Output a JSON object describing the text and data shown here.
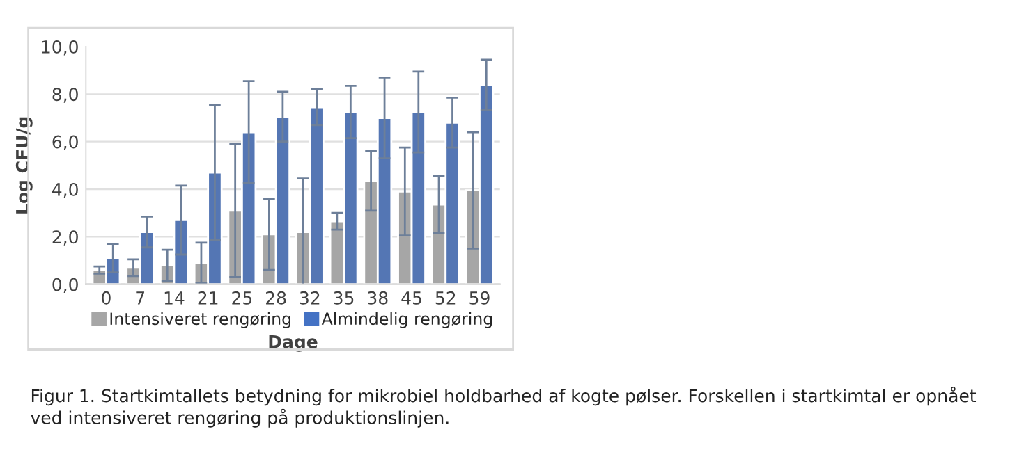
{
  "chart_data": {
    "type": "bar",
    "ylabel": "Log CFU/g",
    "xlabel": "Dage",
    "categories": [
      "0",
      "7",
      "14",
      "21",
      "25",
      "28",
      "32",
      "35",
      "38",
      "45",
      "52",
      "59"
    ],
    "series": [
      {
        "name": "Intensiveret rengøring",
        "color": "#a6a6a6",
        "values": [
          0.6,
          0.7,
          0.8,
          0.9,
          3.1,
          2.1,
          2.2,
          2.65,
          4.35,
          3.9,
          3.35,
          3.95
        ],
        "errors": [
          0.15,
          0.35,
          0.65,
          0.85,
          2.8,
          1.5,
          2.25,
          0.35,
          1.25,
          1.85,
          1.2,
          2.45
        ]
      },
      {
        "name": "Almindelig rengøring",
        "color": "#4472c4",
        "values": [
          1.1,
          2.2,
          2.7,
          4.7,
          6.4,
          7.05,
          7.45,
          7.25,
          7.0,
          7.25,
          6.8,
          8.4
        ],
        "errors": [
          0.6,
          0.65,
          1.45,
          2.85,
          2.15,
          1.05,
          0.75,
          1.1,
          1.7,
          1.7,
          1.05,
          1.05
        ]
      }
    ],
    "ylim": [
      0,
      10
    ],
    "yticks": [
      {
        "value": 0,
        "label": "0,0"
      },
      {
        "value": 2,
        "label": "2,0"
      },
      {
        "value": 4,
        "label": "4,0"
      },
      {
        "value": 6,
        "label": "6,0"
      },
      {
        "value": 8,
        "label": "8,0"
      },
      {
        "value": 10,
        "label": "10,0"
      }
    ],
    "grid": "y",
    "legend": "bottom",
    "annotations": [
      "Figur 1. Startkimtallets betydning for mikrobiel holdbarhed af kogte pølser. Forskellen i startkimtal er opnået ved intensiveret rengøring på produktionslinjen."
    ]
  }
}
